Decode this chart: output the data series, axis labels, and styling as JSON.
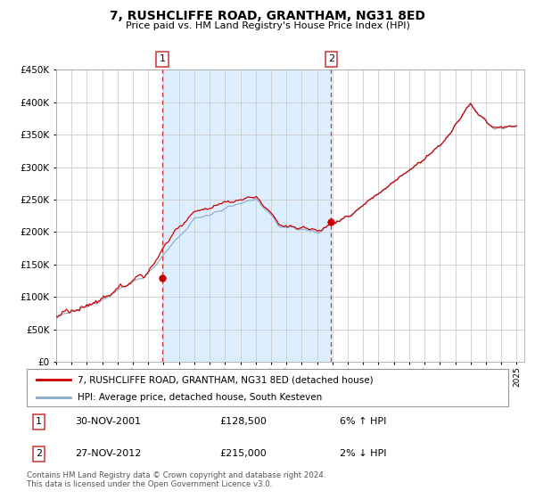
{
  "title": "7, RUSHCLIFFE ROAD, GRANTHAM, NG31 8ED",
  "subtitle": "Price paid vs. HM Land Registry's House Price Index (HPI)",
  "legend_line1": "7, RUSHCLIFFE ROAD, GRANTHAM, NG31 8ED (detached house)",
  "legend_line2": "HPI: Average price, detached house, South Kesteven",
  "marker1_date": "30-NOV-2001",
  "marker1_price": 128500,
  "marker1_text": "6% ↑ HPI",
  "marker2_date": "27-NOV-2012",
  "marker2_price": 215000,
  "marker2_text": "2% ↓ HPI",
  "footer1": "Contains HM Land Registry data © Crown copyright and database right 2024.",
  "footer2": "This data is licensed under the Open Government Licence v3.0.",
  "red_color": "#cc0000",
  "blue_color": "#88aacc",
  "shading_color": "#ddeeff",
  "grid_color": "#cccccc",
  "marker_box_color": "#cc3333",
  "ylim": [
    0,
    450000
  ],
  "xlim_start": 1995.0,
  "xlim_end": 2025.5,
  "marker1_x": 2001.92,
  "marker2_x": 2012.92
}
